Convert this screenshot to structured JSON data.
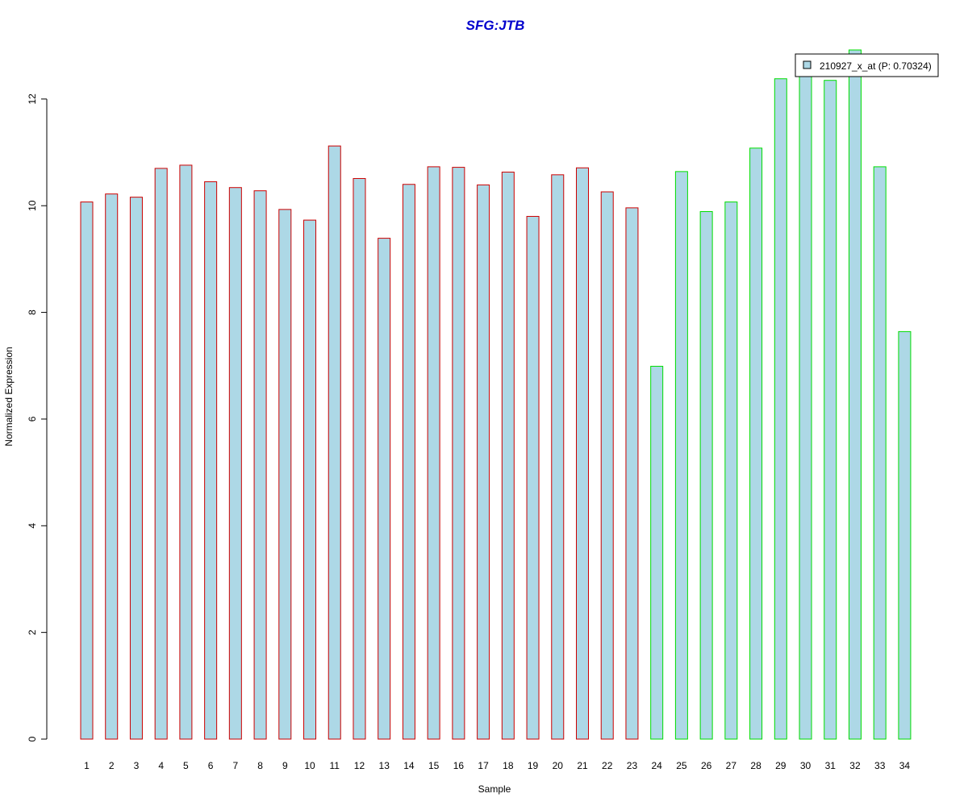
{
  "chart_data": {
    "type": "bar",
    "title": "SFG:JTB",
    "xlabel": "Sample",
    "ylabel": "Normalized Expression",
    "ylim": [
      0,
      12.95
    ],
    "yticks": [
      0,
      2,
      4,
      6,
      8,
      10,
      12
    ],
    "categories": [
      "1",
      "2",
      "3",
      "4",
      "5",
      "6",
      "7",
      "8",
      "9",
      "10",
      "11",
      "12",
      "13",
      "14",
      "15",
      "16",
      "17",
      "18",
      "19",
      "20",
      "21",
      "22",
      "23",
      "24",
      "25",
      "26",
      "27",
      "28",
      "29",
      "30",
      "31",
      "32",
      "33",
      "34"
    ],
    "series": [
      {
        "name": "210927_x_at (P: 0.70324)",
        "values": [
          10.07,
          10.22,
          10.16,
          10.7,
          10.76,
          10.45,
          10.34,
          10.28,
          9.93,
          9.73,
          11.12,
          10.51,
          9.39,
          10.4,
          10.73,
          10.72,
          10.39,
          10.63,
          9.8,
          10.58,
          10.71,
          10.26,
          9.96,
          6.99,
          10.64,
          9.89,
          10.07,
          11.08,
          12.38,
          12.43,
          12.35,
          12.92,
          10.73,
          7.64
        ]
      }
    ],
    "group_colors": [
      "red",
      "red",
      "red",
      "red",
      "red",
      "red",
      "red",
      "red",
      "red",
      "red",
      "red",
      "red",
      "red",
      "red",
      "red",
      "red",
      "red",
      "red",
      "red",
      "red",
      "red",
      "red",
      "red",
      "green",
      "green",
      "green",
      "green",
      "green",
      "green",
      "green",
      "green",
      "green",
      "green",
      "green"
    ],
    "colors": {
      "fill": "#add8e6",
      "title": "#0000cd",
      "red": "#cc0000",
      "green": "#00dd00"
    },
    "legend_position": "top-right"
  }
}
